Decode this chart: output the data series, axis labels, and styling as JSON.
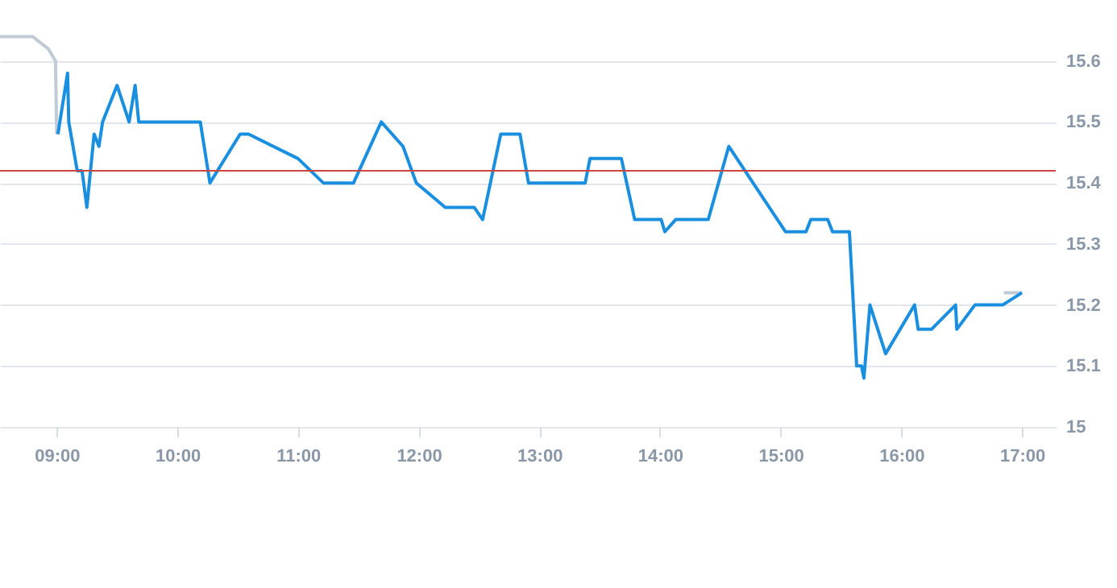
{
  "chart_data": {
    "type": "line",
    "xlim": [
      8.53,
      17.28
    ],
    "ylim": [
      15,
      15.7
    ],
    "xticks": [
      {
        "value": 9,
        "label": "09:00"
      },
      {
        "value": 10,
        "label": "10:00"
      },
      {
        "value": 11,
        "label": "11:00"
      },
      {
        "value": 12,
        "label": "12:00"
      },
      {
        "value": 13,
        "label": "13:00"
      },
      {
        "value": 14,
        "label": "14:00"
      },
      {
        "value": 15,
        "label": "15:00"
      },
      {
        "value": 16,
        "label": "16:00"
      },
      {
        "value": 17,
        "label": "17:00"
      }
    ],
    "yticks": [
      15,
      15.1,
      15.2,
      15.3,
      15.4,
      15.5,
      15.6
    ],
    "grid": "y",
    "series": [
      {
        "color": "#c0cbd6",
        "x": [
          8.53,
          8.8,
          8.93,
          8.99,
          9.0,
          null,
          16.85,
          17.0
        ],
        "values": [
          15.64,
          15.64,
          15.62,
          15.6,
          15.48,
          null,
          15.22,
          15.22
        ]
      },
      {
        "color": "#1a8fe0",
        "x": [
          9.01,
          9.09,
          9.1,
          9.17,
          9.21,
          9.25,
          9.31,
          9.35,
          9.38,
          9.46,
          9.5,
          9.6,
          9.65,
          9.68,
          10.19,
          10.27,
          10.52,
          10.59,
          11.0,
          11.21,
          11.46,
          11.69,
          11.87,
          11.98,
          12.22,
          12.46,
          12.53,
          12.68,
          12.84,
          12.91,
          13.38,
          13.42,
          13.68,
          13.79,
          14.01,
          14.04,
          14.13,
          14.4,
          14.57,
          15.04,
          15.21,
          15.25,
          15.39,
          15.43,
          15.57,
          15.63,
          15.67,
          15.69,
          15.74,
          15.87,
          16.11,
          16.14,
          16.25,
          16.45,
          16.46,
          16.61,
          16.84,
          17.0
        ],
        "values": [
          15.48,
          15.58,
          15.5,
          15.42,
          15.42,
          15.36,
          15.48,
          15.46,
          15.5,
          15.54,
          15.56,
          15.5,
          15.56,
          15.5,
          15.5,
          15.4,
          15.48,
          15.48,
          15.44,
          15.4,
          15.4,
          15.5,
          15.46,
          15.4,
          15.36,
          15.36,
          15.34,
          15.48,
          15.48,
          15.4,
          15.4,
          15.44,
          15.44,
          15.34,
          15.34,
          15.32,
          15.34,
          15.34,
          15.46,
          15.32,
          15.32,
          15.34,
          15.34,
          15.32,
          15.32,
          15.1,
          15.1,
          15.08,
          15.2,
          15.12,
          15.2,
          15.16,
          15.16,
          15.2,
          15.16,
          15.2,
          15.2,
          15.22
        ]
      }
    ],
    "ref_lines": [
      {
        "axis": "y",
        "value": 15.42,
        "color": "#d0453f"
      }
    ]
  }
}
